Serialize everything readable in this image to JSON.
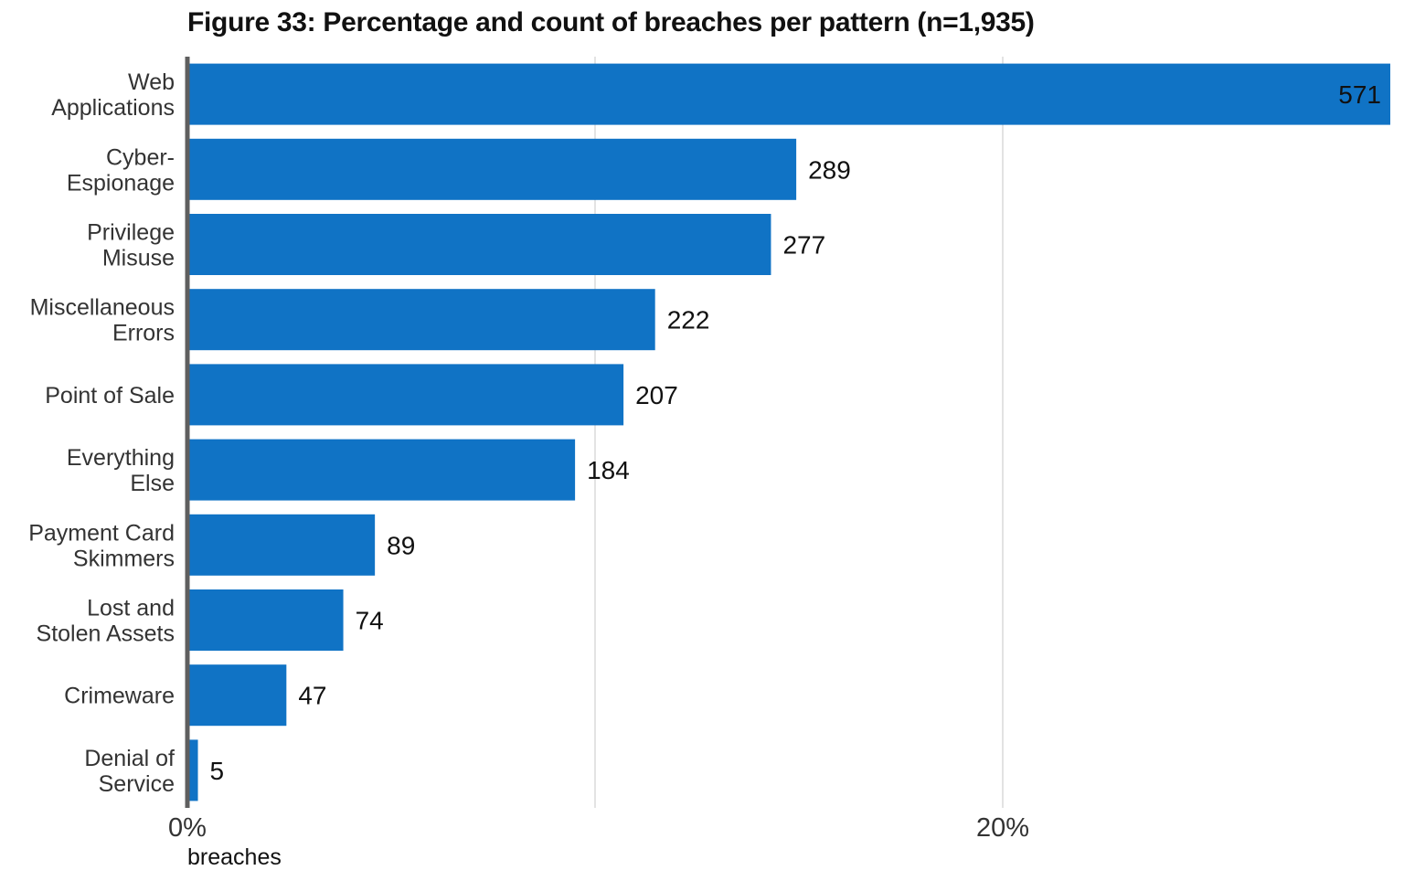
{
  "chart_data": {
    "type": "bar",
    "orientation": "horizontal",
    "title": "Figure 33: Percentage and count of breaches per pattern (n=1,935)",
    "xlabel": "breaches",
    "ylabel": "",
    "xlim": [
      0,
      29.5
    ],
    "xticks": [
      0,
      20
    ],
    "xtick_labels": [
      "0%",
      "20%"
    ],
    "gridlines_at": [
      10,
      20
    ],
    "grid": true,
    "total_n": 1935,
    "categories": [
      [
        "Web",
        "Applications"
      ],
      [
        "Cyber-",
        "Espionage"
      ],
      [
        "Privilege",
        "Misuse"
      ],
      [
        "Miscellaneous",
        "Errors"
      ],
      [
        "Point of Sale"
      ],
      [
        "Everything",
        "Else"
      ],
      [
        "Payment Card",
        "Skimmers"
      ],
      [
        "Lost and",
        "Stolen Assets"
      ],
      [
        "Crimeware"
      ],
      [
        "Denial of",
        "Service"
      ]
    ],
    "counts": [
      571,
      289,
      277,
      222,
      207,
      184,
      89,
      74,
      47,
      5
    ],
    "bar_color": "#1073c5",
    "axis_color": "#5f5f5f",
    "grid_color": "#e3e3e3"
  }
}
